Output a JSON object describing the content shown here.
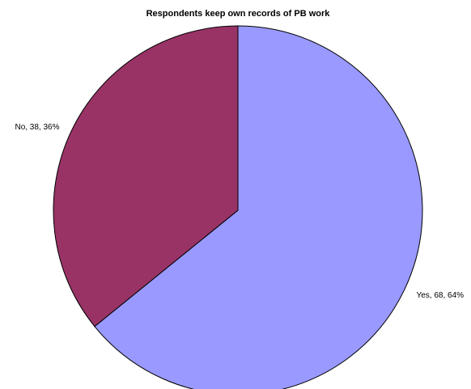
{
  "chart_data": {
    "type": "pie",
    "title": "Respondents keep own records of PB work",
    "slices": [
      {
        "category": "Yes",
        "value": 68,
        "percent": 64,
        "label": "Yes, 68, 64%",
        "color": "#9999ff"
      },
      {
        "category": "No",
        "value": 38,
        "percent": 36,
        "label": "No, 38, 36%",
        "color": "#993366"
      }
    ],
    "start": "12 o'clock",
    "direction": "clockwise",
    "legend": "none"
  }
}
